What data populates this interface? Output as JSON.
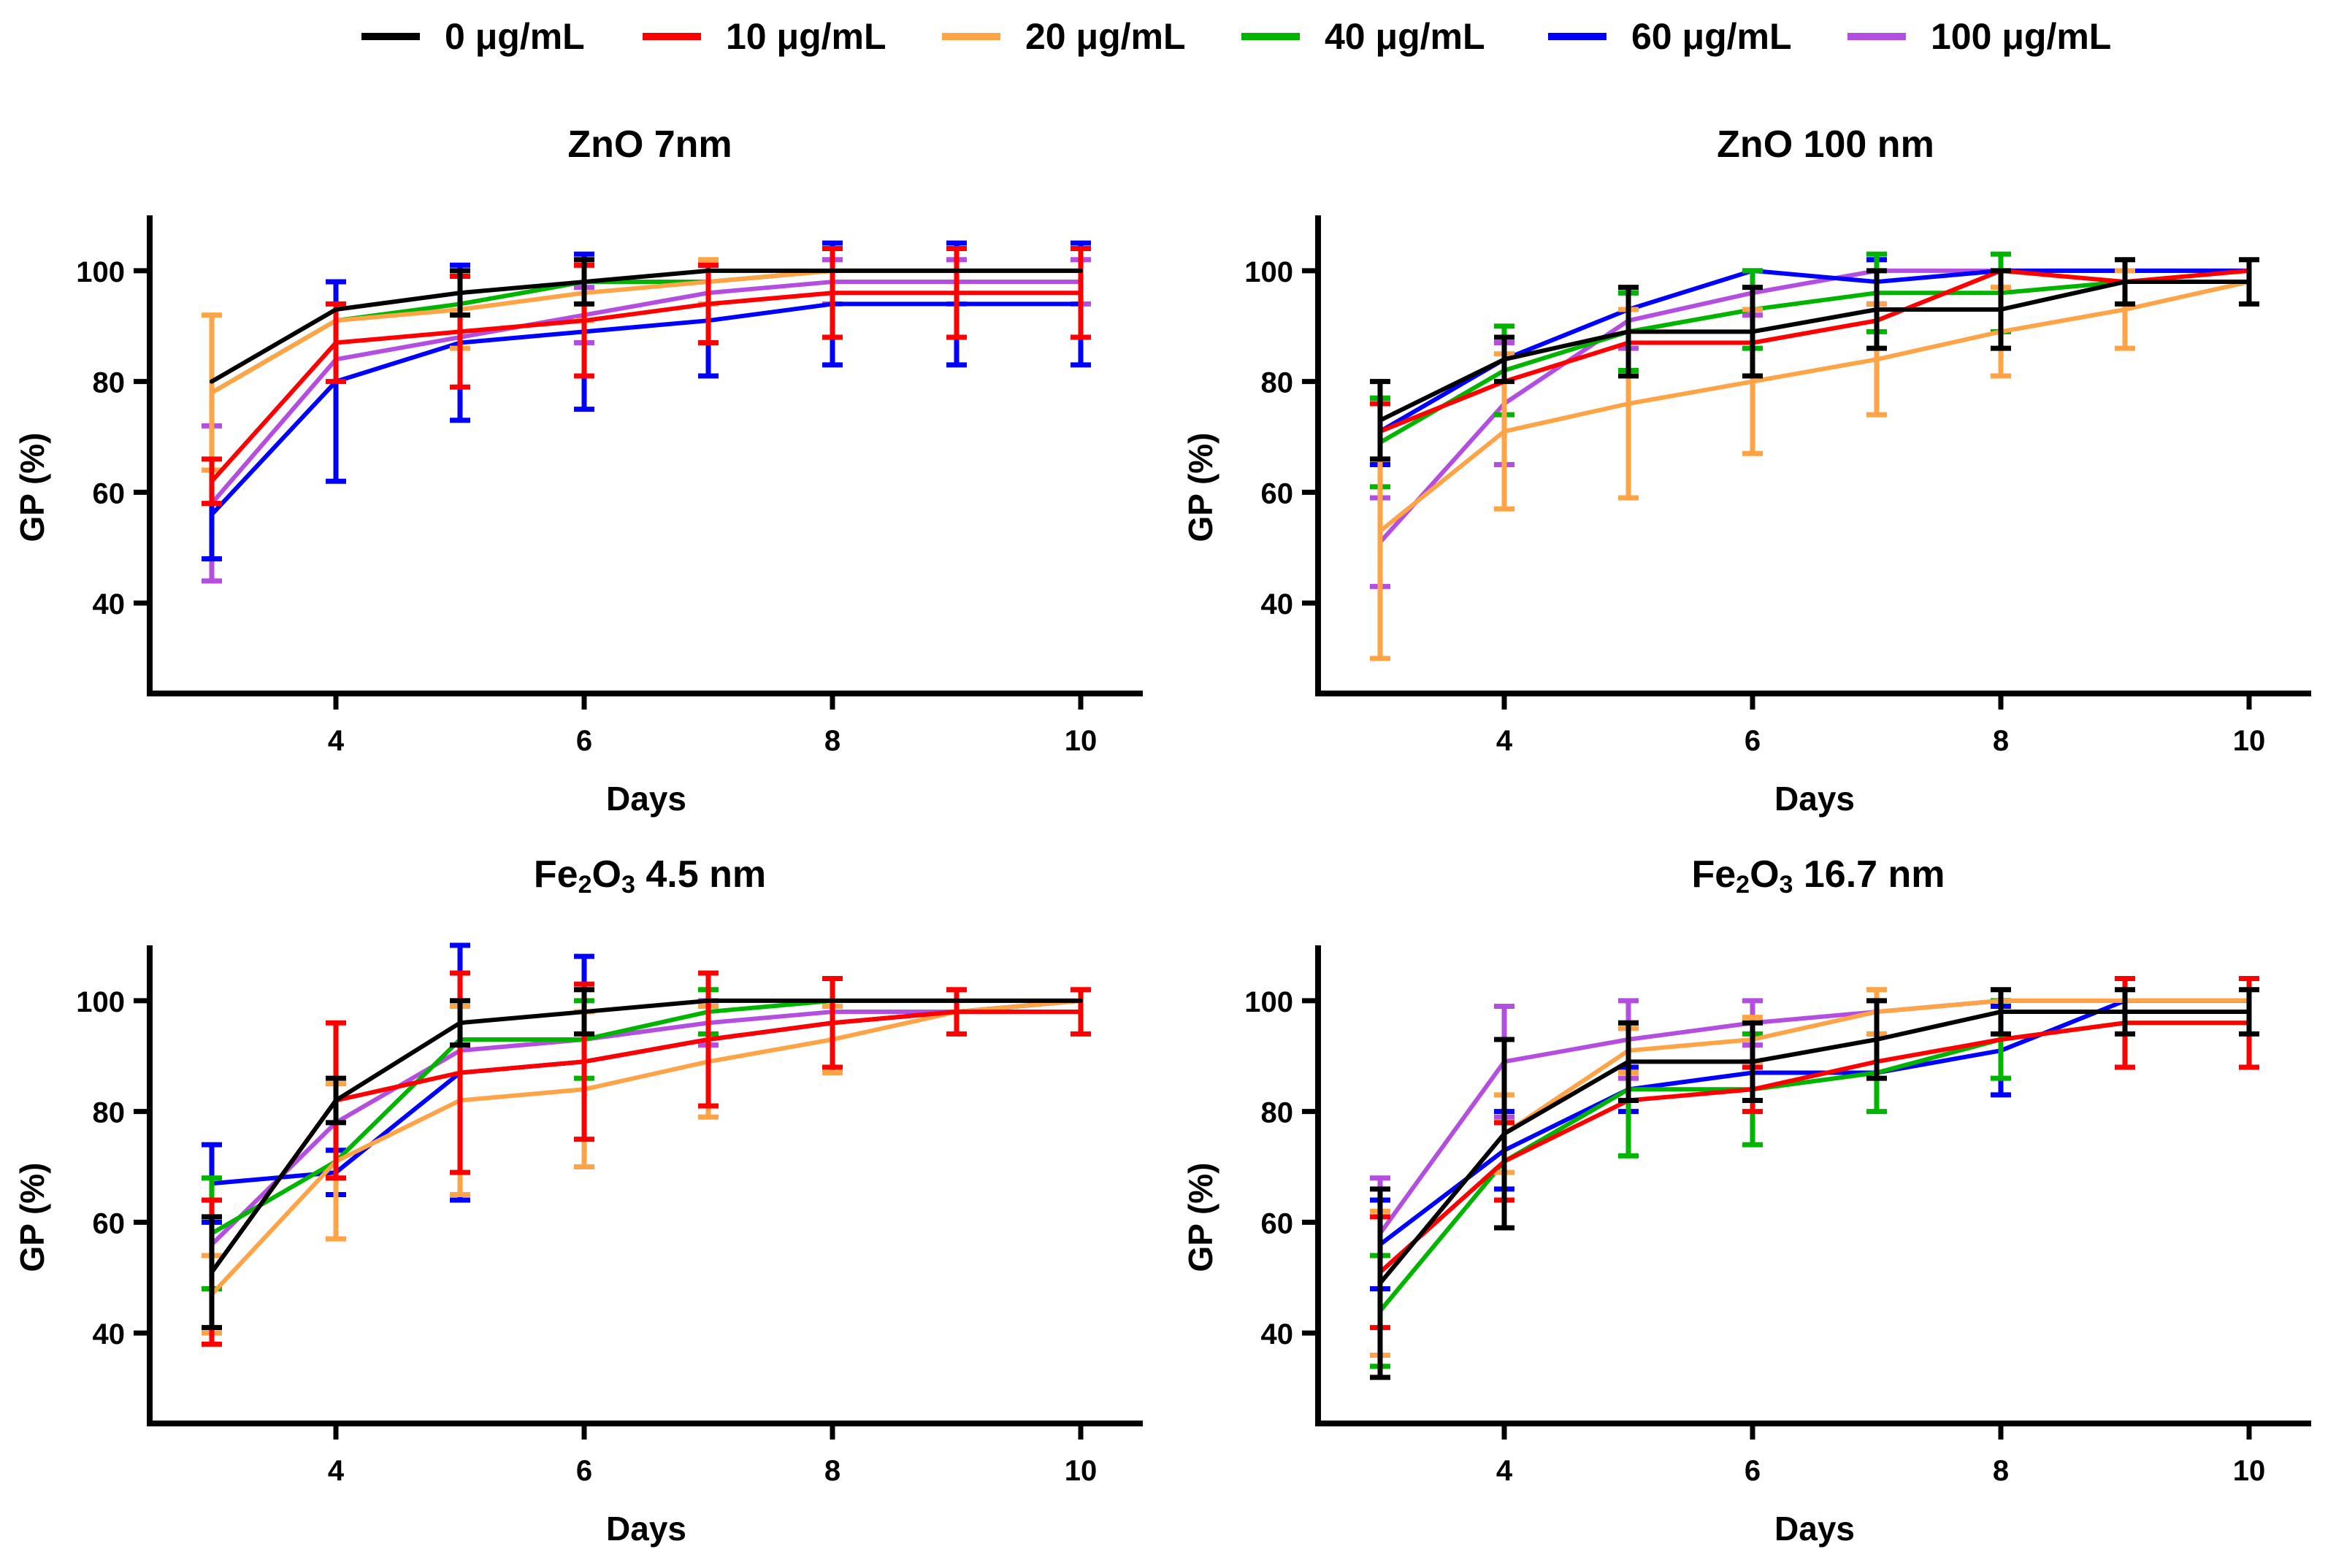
{
  "legend": [
    {
      "label": "0 μg/mL",
      "color": "#000000"
    },
    {
      "label": "10 μg/mL",
      "color": "#ff0000"
    },
    {
      "label": "20 μg/mL",
      "color": "#ffa347"
    },
    {
      "label": "40 μg/mL",
      "color": "#00b400"
    },
    {
      "label": "60 μg/mL",
      "color": "#0000ff"
    },
    {
      "label": "100 μg/mL",
      "color": "#b44ee0"
    }
  ],
  "titles": {
    "zno7": "ZnO 7nm",
    "zno100": "ZnO 100 nm",
    "fe45_pre": "Fe",
    "fe45_sub2": "2",
    "fe45_mid": "O",
    "fe45_sub3": "3",
    "fe45_post": " 4.5 nm",
    "fe167_pre": "Fe",
    "fe167_sub2": "2",
    "fe167_mid": "O",
    "fe167_sub3": "3",
    "fe167_post": " 16.7 nm"
  },
  "chart_data": [
    {
      "id": "zno7",
      "type": "line",
      "title": "ZnO 7nm",
      "xlabel": "Days",
      "ylabel": "GP (%)",
      "xlim": [
        2.5,
        10.5
      ],
      "ylim": [
        25,
        110
      ],
      "xticks": [
        4,
        6,
        8,
        10
      ],
      "yticks": [
        40,
        60,
        80,
        100
      ],
      "series": [
        {
          "name": "100 μg/mL",
          "x": [
            3,
            4,
            5,
            6,
            7,
            8,
            9,
            10
          ],
          "y": [
            58,
            84,
            88,
            92,
            96,
            98,
            98,
            98
          ],
          "err": [
            14,
            0,
            0,
            5,
            0,
            4,
            4,
            4
          ]
        },
        {
          "name": "60 μg/mL",
          "x": [
            3,
            4,
            5,
            6,
            7,
            8,
            9,
            10
          ],
          "y": [
            56,
            80,
            87,
            89,
            91,
            94,
            94,
            94
          ],
          "err": [
            8,
            18,
            14,
            14,
            10,
            11,
            11,
            11
          ]
        },
        {
          "name": "40 μg/mL",
          "x": [
            3,
            4,
            5,
            6,
            7,
            8,
            9,
            10
          ],
          "y": [
            78,
            91,
            94,
            98,
            98,
            100,
            100,
            100
          ],
          "err": [
            0,
            0,
            0,
            0,
            0,
            0,
            0,
            0
          ]
        },
        {
          "name": "20 μg/mL",
          "x": [
            3,
            4,
            5,
            6,
            7,
            8,
            9,
            10
          ],
          "y": [
            78,
            91,
            93,
            96,
            98,
            100,
            100,
            100
          ],
          "err": [
            14,
            0,
            7,
            5,
            4,
            0,
            0,
            0
          ]
        },
        {
          "name": "10 μg/mL",
          "x": [
            3,
            4,
            5,
            6,
            7,
            8,
            9,
            10
          ],
          "y": [
            62,
            87,
            89,
            91,
            94,
            96,
            96,
            96
          ],
          "err": [
            4,
            7,
            10,
            10,
            7,
            8,
            8,
            8
          ]
        },
        {
          "name": "0 μg/mL",
          "x": [
            3,
            4,
            5,
            6,
            7,
            8,
            9,
            10
          ],
          "y": [
            80,
            93,
            96,
            98,
            100,
            100,
            100,
            100
          ],
          "err": [
            0,
            0,
            4,
            4,
            0,
            0,
            0,
            0
          ]
        }
      ]
    },
    {
      "id": "zno100",
      "type": "line",
      "title": "ZnO 100 nm",
      "xlabel": "Days",
      "ylabel": "GP (%)",
      "xlim": [
        2.5,
        10.5
      ],
      "ylim": [
        25,
        110
      ],
      "xticks": [
        4,
        6,
        8,
        10
      ],
      "yticks": [
        40,
        60,
        80,
        100
      ],
      "series": [
        {
          "name": "100 μg/mL",
          "x": [
            3,
            4,
            5,
            6,
            7,
            8,
            9,
            10
          ],
          "y": [
            51,
            76,
            91,
            96,
            100,
            100,
            100,
            100
          ],
          "err": [
            8,
            11,
            5,
            4,
            0,
            0,
            0,
            0
          ]
        },
        {
          "name": "60 μg/mL",
          "x": [
            3,
            4,
            5,
            6,
            7,
            8,
            9,
            10
          ],
          "y": [
            71,
            84,
            93,
            100,
            98,
            100,
            100,
            100
          ],
          "err": [
            6,
            0,
            0,
            0,
            4,
            0,
            0,
            0
          ]
        },
        {
          "name": "40 μg/mL",
          "x": [
            3,
            4,
            5,
            6,
            7,
            8,
            9,
            10
          ],
          "y": [
            69,
            82,
            89,
            93,
            96,
            96,
            98,
            98
          ],
          "err": [
            8,
            8,
            7,
            7,
            7,
            7,
            0,
            0
          ]
        },
        {
          "name": "20 μg/mL",
          "x": [
            3,
            4,
            5,
            6,
            7,
            8,
            9,
            10
          ],
          "y": [
            53,
            71,
            76,
            80,
            84,
            89,
            93,
            98
          ],
          "err": [
            23,
            14,
            17,
            13,
            10,
            8,
            7,
            0
          ]
        },
        {
          "name": "10 μg/mL",
          "x": [
            3,
            4,
            5,
            6,
            7,
            8,
            9,
            10
          ],
          "y": [
            71,
            80,
            87,
            87,
            91,
            100,
            98,
            100
          ],
          "err": [
            5,
            0,
            0,
            0,
            0,
            0,
            0,
            0
          ]
        },
        {
          "name": "0 μg/mL",
          "x": [
            3,
            4,
            5,
            6,
            7,
            8,
            9,
            10
          ],
          "y": [
            73,
            84,
            89,
            89,
            93,
            93,
            98,
            98
          ],
          "err": [
            7,
            4,
            8,
            8,
            7,
            7,
            4,
            4
          ]
        }
      ]
    },
    {
      "id": "fe45",
      "type": "line",
      "title": "Fe2O3 4.5 nm",
      "xlabel": "Days",
      "ylabel": "GP (%)",
      "xlim": [
        2.5,
        10.5
      ],
      "ylim": [
        25,
        110
      ],
      "xticks": [
        4,
        6,
        8,
        10
      ],
      "yticks": [
        40,
        60,
        80,
        100
      ],
      "series": [
        {
          "name": "100 μg/mL",
          "x": [
            3,
            4,
            5,
            6,
            7,
            8,
            9,
            10
          ],
          "y": [
            56,
            78,
            91,
            93,
            96,
            98,
            98,
            98
          ],
          "err": [
            0,
            0,
            0,
            0,
            4,
            0,
            0,
            0
          ]
        },
        {
          "name": "60 μg/mL",
          "x": [
            3,
            4,
            5,
            6,
            7,
            8,
            9,
            10
          ],
          "y": [
            67,
            69,
            87,
            89,
            93,
            96,
            98,
            100
          ],
          "err": [
            7,
            4,
            23,
            19,
            0,
            0,
            0,
            0
          ]
        },
        {
          "name": "40 μg/mL",
          "x": [
            3,
            4,
            5,
            6,
            7,
            8,
            9,
            10
          ],
          "y": [
            58,
            71,
            93,
            93,
            98,
            100,
            100,
            100
          ],
          "err": [
            10,
            0,
            0,
            7,
            4,
            0,
            0,
            0
          ]
        },
        {
          "name": "20 μg/mL",
          "x": [
            3,
            4,
            5,
            6,
            7,
            8,
            9,
            10
          ],
          "y": [
            47,
            71,
            82,
            84,
            89,
            93,
            98,
            100
          ],
          "err": [
            7,
            14,
            17,
            14,
            10,
            6,
            0,
            0
          ]
        },
        {
          "name": "10 μg/mL",
          "x": [
            3,
            4,
            5,
            6,
            7,
            8,
            9,
            10
          ],
          "y": [
            51,
            82,
            87,
            89,
            93,
            96,
            98,
            98
          ],
          "err": [
            13,
            14,
            18,
            14,
            12,
            8,
            4,
            4
          ]
        },
        {
          "name": "0 μg/mL",
          "x": [
            3,
            4,
            5,
            6,
            7,
            8,
            9,
            10
          ],
          "y": [
            51,
            82,
            96,
            98,
            100,
            100,
            100,
            100
          ],
          "err": [
            10,
            4,
            4,
            4,
            0,
            0,
            0,
            0
          ]
        }
      ]
    },
    {
      "id": "fe167",
      "type": "line",
      "title": "Fe2O3 16.7 nm",
      "xlabel": "Days",
      "ylabel": "GP (%)",
      "xlim": [
        2.5,
        10.5
      ],
      "ylim": [
        25,
        110
      ],
      "xticks": [
        4,
        6,
        8,
        10
      ],
      "yticks": [
        40,
        60,
        80,
        100
      ],
      "series": [
        {
          "name": "100 μg/mL",
          "x": [
            3,
            4,
            5,
            6,
            7,
            8,
            9,
            10
          ],
          "y": [
            58,
            89,
            93,
            96,
            98,
            100,
            100,
            100
          ],
          "err": [
            10,
            10,
            7,
            4,
            0,
            0,
            0,
            0
          ]
        },
        {
          "name": "60 μg/mL",
          "x": [
            3,
            4,
            5,
            6,
            7,
            8,
            9,
            10
          ],
          "y": [
            56,
            73,
            84,
            87,
            87,
            91,
            100,
            100
          ],
          "err": [
            8,
            7,
            4,
            0,
            0,
            8,
            0,
            0
          ]
        },
        {
          "name": "40 μg/mL",
          "x": [
            3,
            4,
            5,
            6,
            7,
            8,
            9,
            10
          ],
          "y": [
            44,
            71,
            84,
            84,
            87,
            93,
            96,
            96
          ],
          "err": [
            10,
            7,
            12,
            10,
            7,
            7,
            0,
            0
          ]
        },
        {
          "name": "20 μg/mL",
          "x": [
            3,
            4,
            5,
            6,
            7,
            8,
            9,
            10
          ],
          "y": [
            49,
            76,
            91,
            93,
            98,
            100,
            100,
            100
          ],
          "err": [
            13,
            7,
            4,
            4,
            4,
            0,
            0,
            0
          ]
        },
        {
          "name": "10 μg/mL",
          "x": [
            3,
            4,
            5,
            6,
            7,
            8,
            9,
            10
          ],
          "y": [
            51,
            71,
            82,
            84,
            89,
            93,
            96,
            96
          ],
          "err": [
            10,
            7,
            0,
            4,
            0,
            0,
            8,
            8
          ]
        },
        {
          "name": "0 μg/mL",
          "x": [
            3,
            4,
            5,
            6,
            7,
            8,
            9,
            10
          ],
          "y": [
            49,
            76,
            89,
            89,
            93,
            98,
            98,
            98
          ],
          "err": [
            17,
            17,
            7,
            7,
            7,
            4,
            4,
            4
          ]
        }
      ]
    }
  ]
}
